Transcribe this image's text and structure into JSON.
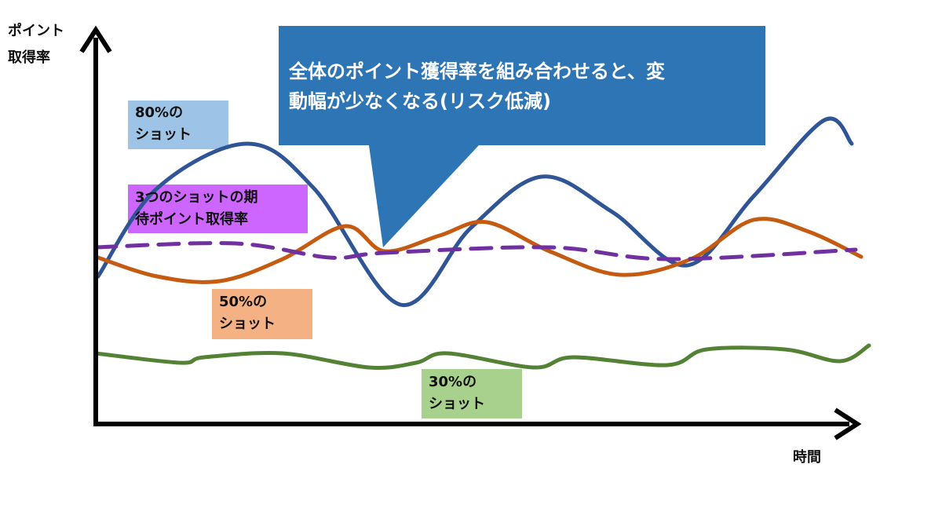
{
  "axes": {
    "y_label": [
      "ポイント",
      "取得率"
    ],
    "x_label": "時間"
  },
  "callout": {
    "lines": [
      "全体のポイント獲得率を組み合わせると、変",
      "動幅が少なくなる(リスク低減)"
    ]
  },
  "labels": [
    {
      "lines": [
        "80%の",
        "ショット"
      ]
    },
    {
      "lines": [
        "3つのショットの期",
        "待ポイント取得率"
      ]
    },
    {
      "lines": [
        "50%の",
        "ショット"
      ]
    },
    {
      "lines": [
        "30%の",
        "ショット"
      ]
    }
  ]
}
